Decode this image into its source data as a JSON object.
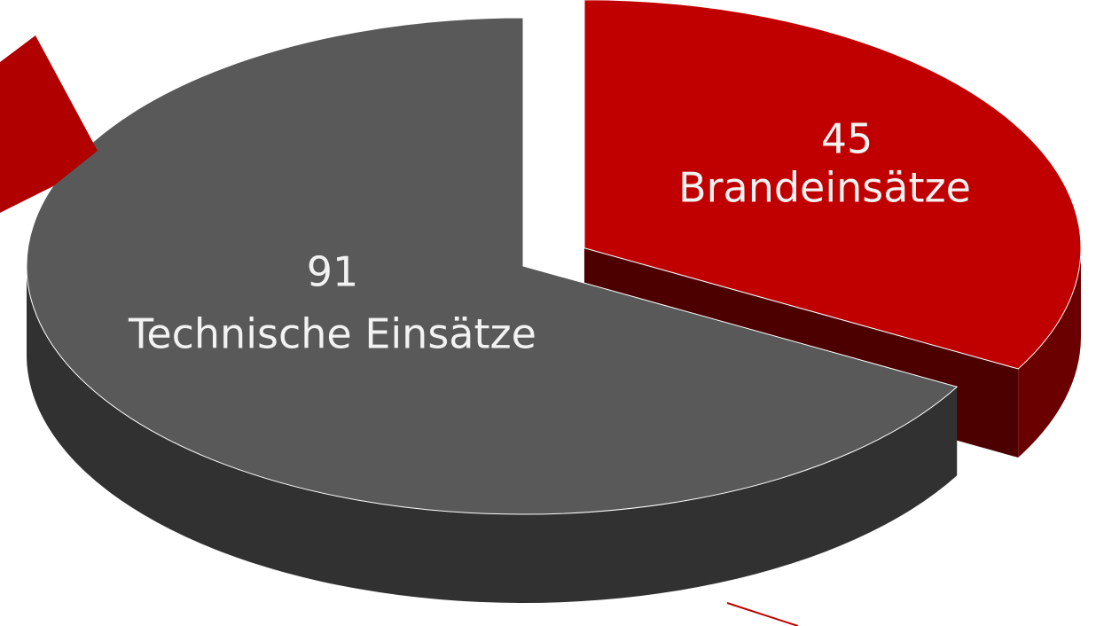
{
  "chart_data": {
    "type": "pie",
    "categories": [
      "Technische Einsätze",
      "Brandeinsätze"
    ],
    "values": [
      91,
      45
    ],
    "colors": [
      "#595959",
      "#c00000"
    ]
  }
}
